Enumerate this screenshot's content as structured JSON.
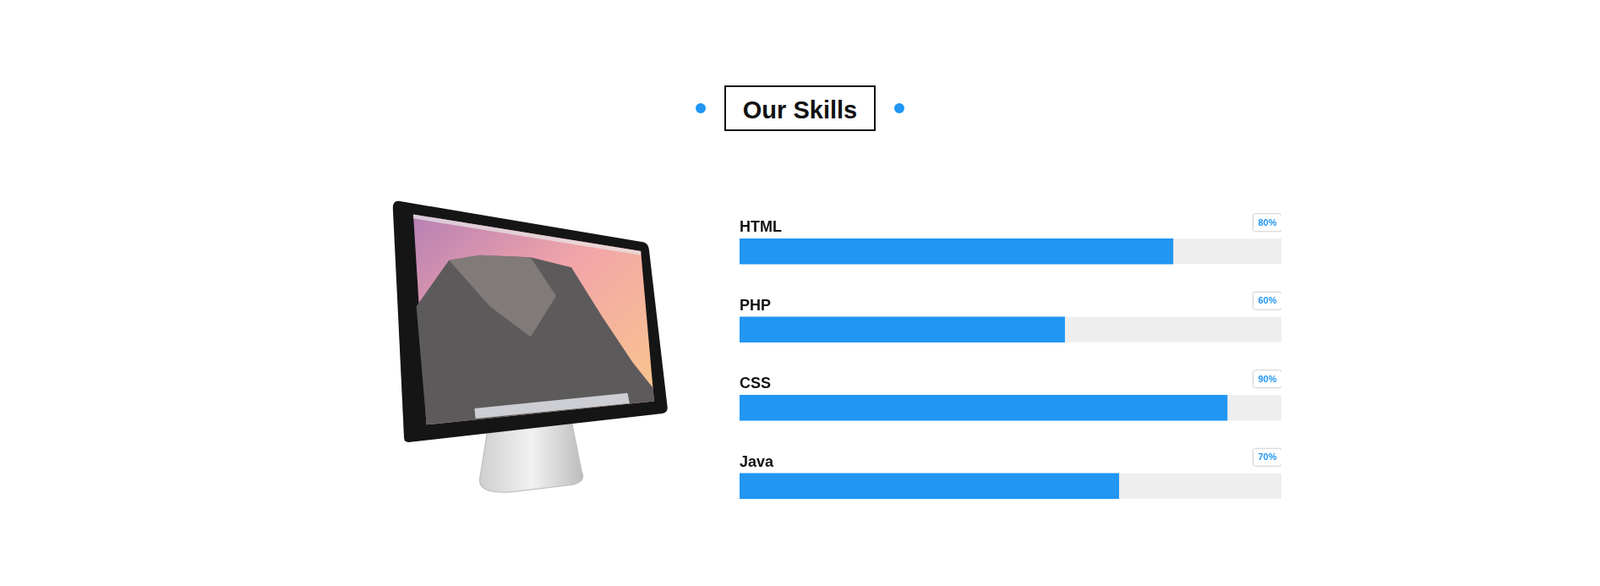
{
  "chart_data": {
    "type": "bar",
    "title": "Our Skills",
    "orientation": "horizontal",
    "categories": [
      "HTML",
      "PHP",
      "CSS",
      "Java"
    ],
    "values": [
      80,
      60,
      90,
      70
    ],
    "value_labels": [
      "80%",
      "60%",
      "90%",
      "70%"
    ],
    "color": "#2196f3",
    "xlim": [
      0,
      100
    ],
    "grid": false,
    "data_labels": true,
    "tick_labels": false
  }
}
